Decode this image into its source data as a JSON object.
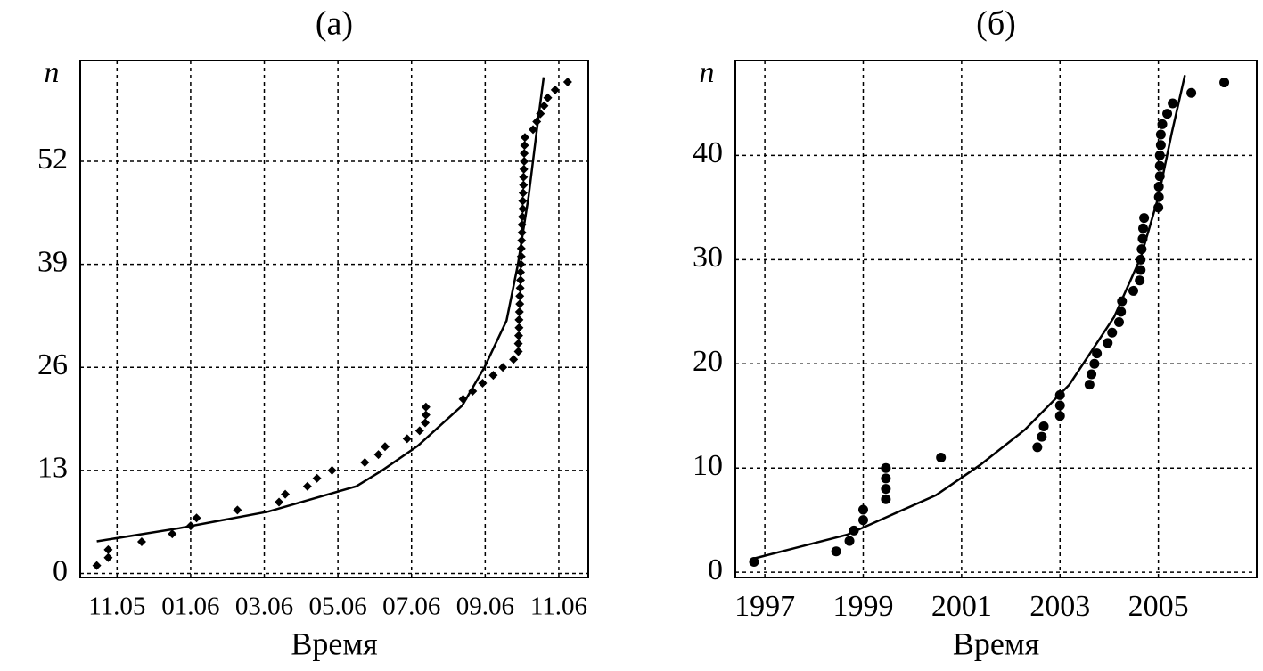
{
  "chart_data": [
    {
      "type": "scatter",
      "title": "(а)",
      "ylabel": "n",
      "xlabel": "Время",
      "marker": "diamond",
      "color": "#000000",
      "grid": true,
      "xlim": [
        10,
        23.8
      ],
      "ylim": [
        -0.5,
        64.7
      ],
      "xticks": [
        {
          "value": 11,
          "label": "11.05"
        },
        {
          "value": 13,
          "label": "01.06"
        },
        {
          "value": 15,
          "label": "03.06"
        },
        {
          "value": 17,
          "label": "05.06"
        },
        {
          "value": 19,
          "label": "07.06"
        },
        {
          "value": 21,
          "label": "09.06"
        },
        {
          "value": 23,
          "label": "11.06"
        }
      ],
      "yticks": [
        0,
        13,
        26,
        39,
        52
      ],
      "points": {
        "x": [
          10.45,
          10.76,
          10.76,
          11.67,
          12.5,
          13.0,
          13.16,
          14.27,
          15.4,
          15.57,
          16.17,
          16.43,
          16.84,
          17.73,
          18.1,
          18.28,
          18.88,
          19.22,
          19.37,
          19.39,
          19.39,
          20.4,
          20.66,
          20.93,
          21.22,
          21.48,
          21.77,
          21.9,
          21.9,
          21.91,
          21.92,
          21.92,
          21.93,
          21.94,
          21.94,
          21.95,
          21.96,
          21.96,
          21.97,
          21.98,
          21.98,
          21.99,
          22.0,
          22.0,
          22.01,
          22.02,
          22.02,
          22.03,
          22.04,
          22.04,
          22.05,
          22.06,
          22.06,
          22.07,
          22.08,
          22.3,
          22.4,
          22.5,
          22.6,
          22.7,
          22.9,
          23.24
        ],
        "y": [
          1,
          2,
          3,
          4,
          5,
          6,
          7,
          8,
          9,
          10,
          11,
          12,
          13,
          14,
          15,
          16,
          17,
          18,
          19,
          20,
          21,
          22,
          23,
          24,
          25,
          26,
          27,
          28,
          29,
          30,
          31,
          32,
          33,
          34,
          35,
          36,
          37,
          38,
          39,
          40,
          41,
          42,
          43,
          44,
          45,
          46,
          47,
          48,
          49,
          50,
          51,
          52,
          53,
          54,
          55,
          56,
          57,
          58,
          59,
          60,
          61,
          62
        ]
      },
      "curve": {
        "x": [
          10.45,
          12.68,
          15.1,
          17.5,
          18.2,
          19.17,
          20.38,
          20.98,
          21.58,
          21.89,
          22.18,
          22.42,
          22.59
        ],
        "y": [
          4.05,
          5.7,
          7.8,
          11,
          13,
          16.1,
          21.2,
          26,
          31.9,
          39,
          47.6,
          56.6,
          62.6
        ]
      }
    },
    {
      "type": "scatter",
      "title": "(б)",
      "ylabel": "n",
      "xlabel": "Время",
      "marker": "circle",
      "color": "#000000",
      "grid": true,
      "xlim": [
        1996.4,
        2007.0
      ],
      "ylim": [
        -0.5,
        49.1
      ],
      "xticks": [
        1997,
        1999,
        2001,
        2003,
        2005
      ],
      "yticks": [
        0,
        10,
        20,
        30,
        40
      ],
      "points": {
        "x": [
          1996.78,
          1998.45,
          1998.72,
          1998.81,
          1999.0,
          1999.0,
          1999.46,
          1999.46,
          1999.46,
          1999.46,
          2000.58,
          2002.54,
          2002.63,
          2002.67,
          2003.0,
          2003.0,
          2003.0,
          2003.6,
          2003.64,
          2003.7,
          2003.75,
          2003.97,
          2004.06,
          2004.2,
          2004.24,
          2004.26,
          2004.49,
          2004.62,
          2004.64,
          2004.64,
          2004.66,
          2004.68,
          2004.69,
          2004.71,
          2005.0,
          2005.01,
          2005.01,
          2005.03,
          2005.03,
          2005.03,
          2005.05,
          2005.05,
          2005.08,
          2005.18,
          2005.29,
          2005.67,
          2006.34
        ],
        "y": [
          1,
          2,
          3,
          4,
          5,
          6,
          7,
          8,
          9,
          10,
          11,
          12,
          13,
          14,
          15,
          16,
          17,
          18,
          19,
          20,
          21,
          22,
          23,
          24,
          25,
          26,
          27,
          28,
          29,
          30,
          31,
          32,
          33,
          34,
          35,
          36,
          37,
          38,
          39,
          40,
          41,
          42,
          43,
          44,
          45,
          46,
          47
        ]
      },
      "curve": {
        "x": [
          1996.76,
          1998.67,
          2000.48,
          2001.38,
          2002.29,
          2003.19,
          2004.1,
          2004.64,
          2005.0,
          2005.27,
          2005.54
        ],
        "y": [
          1.3,
          3.6,
          7.4,
          10.3,
          13.7,
          18,
          24.5,
          30.2,
          36,
          42.1,
          47.7
        ]
      }
    }
  ]
}
